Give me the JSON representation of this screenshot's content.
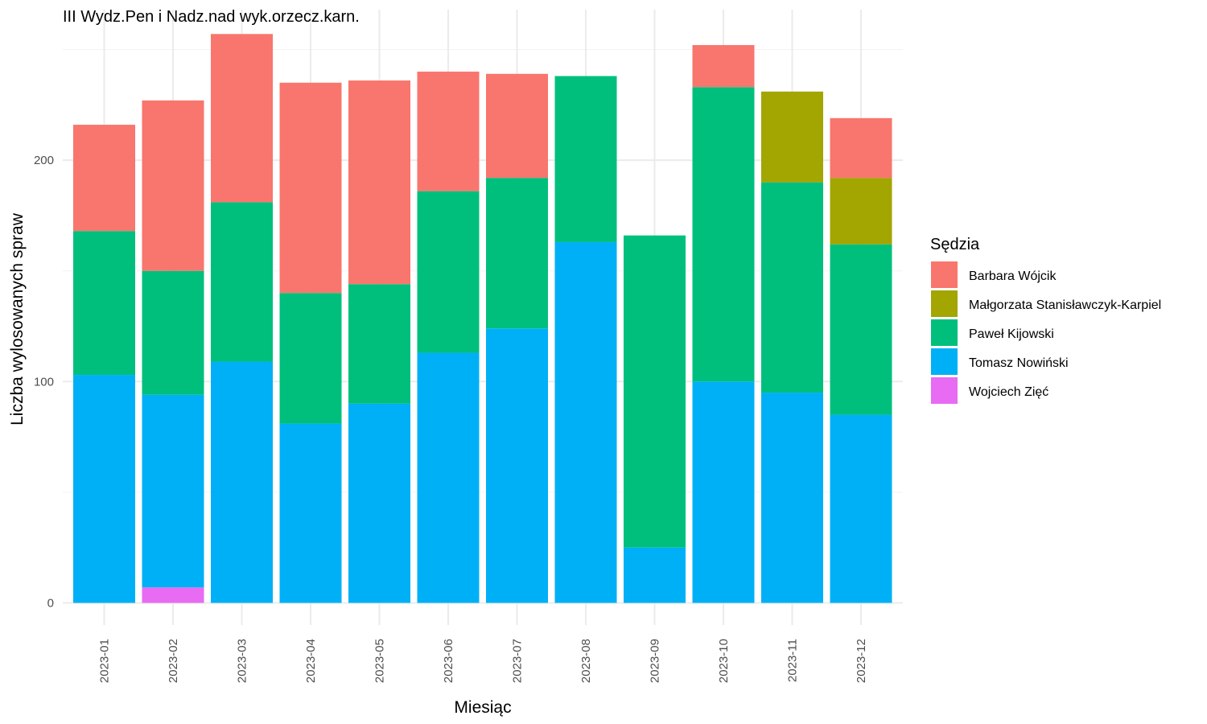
{
  "chart_data": {
    "type": "bar",
    "stacked": true,
    "title": "III Wydz.Pen i Nadz.nad wyk.orzecz.karn.",
    "xlabel": "Miesiąc",
    "ylabel": "Liczba wylosowanych spraw",
    "ylim": [
      -10,
      268
    ],
    "yticks": [
      0,
      100,
      200
    ],
    "grid": true,
    "legend_title": "Sędzia",
    "legend_position": "right",
    "categories": [
      "2023-01",
      "2023-02",
      "2023-03",
      "2023-04",
      "2023-05",
      "2023-06",
      "2023-07",
      "2023-08",
      "2023-09",
      "2023-10",
      "2023-11",
      "2023-12"
    ],
    "series": [
      {
        "name": "Barbara Wójcik",
        "color": "#F8766D",
        "values": [
          48,
          77,
          76,
          95,
          92,
          54,
          47,
          0,
          0,
          19,
          0,
          27
        ]
      },
      {
        "name": "Małgorzata Stanisławczyk-Karpiel",
        "color": "#A3A500",
        "values": [
          0,
          0,
          0,
          0,
          0,
          0,
          0,
          0,
          0,
          0,
          41,
          30
        ]
      },
      {
        "name": "Paweł Kijowski",
        "color": "#00BF7D",
        "values": [
          65,
          56,
          72,
          59,
          54,
          73,
          68,
          75,
          141,
          133,
          95,
          77
        ]
      },
      {
        "name": "Tomasz Nowiński",
        "color": "#00B0F6",
        "values": [
          103,
          87,
          109,
          81,
          90,
          113,
          124,
          163,
          25,
          100,
          95,
          85
        ]
      },
      {
        "name": "Wojciech Zięć",
        "color": "#E76BF3",
        "values": [
          0,
          7,
          0,
          0,
          0,
          0,
          0,
          0,
          0,
          0,
          0,
          0
        ]
      }
    ]
  }
}
